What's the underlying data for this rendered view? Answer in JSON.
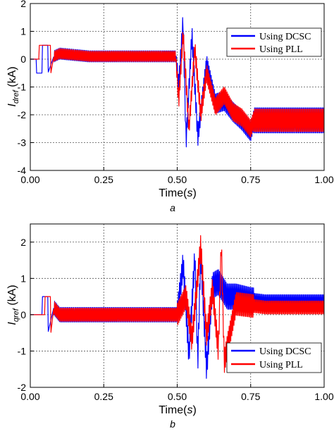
{
  "chart_data": [
    {
      "panel": "a",
      "type": "line",
      "xlabel": "Time(s)",
      "ylabel": "I_dref (kA)",
      "xlim": [
        0,
        1
      ],
      "ylim": [
        -4,
        2
      ],
      "xticks": [
        "0.00",
        "0.25",
        "0.50",
        "0.75",
        "1.00"
      ],
      "yticks": [
        "-4",
        "-3",
        "-2",
        "-1",
        "0",
        "1",
        "2"
      ],
      "grid": true,
      "legend_position": "top-right",
      "series": [
        {
          "name": "Using DCSC",
          "color": "#0000ff",
          "x": [
            0.0,
            0.02,
            0.02,
            0.04,
            0.04,
            0.06,
            0.06,
            0.08,
            0.1,
            0.2,
            0.3,
            0.4,
            0.495,
            0.505,
            0.52,
            0.53,
            0.55,
            0.57,
            0.6,
            0.63,
            0.66,
            0.69,
            0.72,
            0.75,
            0.76,
            0.8,
            0.9,
            1.0
          ],
          "y": [
            0.0,
            0.0,
            -0.5,
            -0.5,
            0.5,
            0.5,
            -0.5,
            0.1,
            0.2,
            0.1,
            0.1,
            0.1,
            0.1,
            -1.0,
            1.4,
            -3.0,
            0.9,
            -2.8,
            -0.2,
            -1.6,
            -1.5,
            -1.9,
            -2.2,
            -2.6,
            -2.2,
            -2.2,
            -2.2,
            -2.2
          ]
        },
        {
          "name": "Using PLL",
          "color": "#ff0000",
          "x": [
            0.0,
            0.03,
            0.03,
            0.07,
            0.07,
            0.08,
            0.1,
            0.2,
            0.3,
            0.4,
            0.495,
            0.505,
            0.52,
            0.54,
            0.56,
            0.58,
            0.6,
            0.63,
            0.66,
            0.69,
            0.72,
            0.75,
            0.76,
            0.8,
            0.9,
            1.0
          ],
          "y": [
            0.0,
            0.0,
            0.5,
            0.5,
            -0.5,
            0.1,
            0.2,
            0.1,
            0.1,
            0.1,
            0.1,
            -1.5,
            0.9,
            -2.5,
            0.4,
            -2.0,
            -0.5,
            -1.7,
            -1.3,
            -1.9,
            -2.1,
            -2.5,
            -2.2,
            -2.2,
            -2.2,
            -2.2
          ]
        }
      ]
    },
    {
      "panel": "b",
      "type": "line",
      "xlabel": "Time(s)",
      "ylabel": "I_qref (kA)",
      "xlim": [
        0,
        1
      ],
      "ylim": [
        -2,
        2.5
      ],
      "xticks": [
        "0.00",
        "0.25",
        "0.50",
        "0.75",
        "1.00"
      ],
      "yticks": [
        "-2",
        "-1",
        "0",
        "1",
        "2"
      ],
      "grid": true,
      "legend_position": "bottom-right",
      "series": [
        {
          "name": "Using DCSC",
          "color": "#0000ff",
          "x": [
            0.0,
            0.04,
            0.04,
            0.06,
            0.06,
            0.08,
            0.1,
            0.2,
            0.3,
            0.4,
            0.5,
            0.52,
            0.54,
            0.56,
            0.57,
            0.58,
            0.6,
            0.62,
            0.64,
            0.67,
            0.7,
            0.75,
            0.8,
            0.9,
            1.0
          ],
          "y": [
            0.0,
            0.0,
            0.5,
            0.5,
            -0.5,
            0.2,
            0.0,
            0.0,
            0.0,
            0.0,
            0.0,
            1.4,
            -1.1,
            1.6,
            -1.3,
            1.7,
            -1.5,
            0.8,
            0.9,
            0.5,
            0.5,
            0.4,
            0.35,
            0.35,
            0.35
          ]
        },
        {
          "name": "Using PLL",
          "color": "#ff0000",
          "x": [
            0.0,
            0.05,
            0.05,
            0.07,
            0.07,
            0.08,
            0.1,
            0.2,
            0.3,
            0.4,
            0.5,
            0.53,
            0.55,
            0.58,
            0.6,
            0.62,
            0.64,
            0.65,
            0.66,
            0.7,
            0.75,
            0.8,
            0.9,
            1.0
          ],
          "y": [
            0.0,
            0.0,
            0.5,
            0.5,
            -0.5,
            0.2,
            0.0,
            0.0,
            0.0,
            0.0,
            0.0,
            0.5,
            -0.7,
            1.9,
            -0.6,
            0.7,
            -1.0,
            2.0,
            -1.3,
            0.3,
            0.25,
            0.2,
            0.2,
            0.2
          ]
        }
      ]
    }
  ]
}
